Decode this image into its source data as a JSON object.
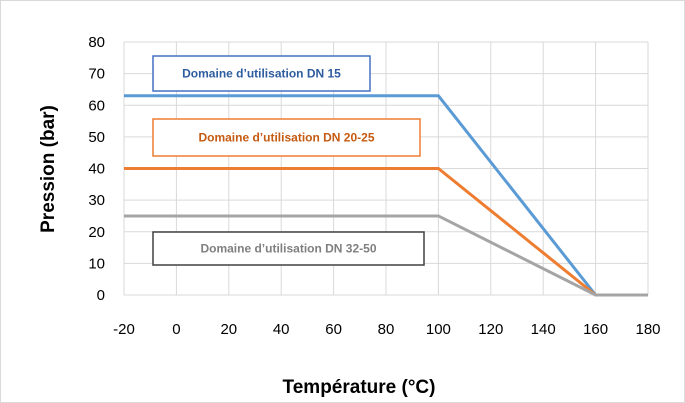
{
  "chart_data": {
    "type": "line",
    "title": "",
    "xlabel": "Température (°C)",
    "ylabel": "Pression (bar)",
    "xlim": [
      -20,
      180
    ],
    "ylim": [
      0,
      80
    ],
    "x_ticks": [
      -20,
      0,
      20,
      40,
      60,
      80,
      100,
      120,
      140,
      160,
      180
    ],
    "y_ticks": [
      0,
      10,
      20,
      30,
      40,
      50,
      60,
      70,
      80
    ],
    "grid": true,
    "series": [
      {
        "color": "#5b9bd5",
        "points": [
          [
            -20,
            63
          ],
          [
            100,
            63
          ],
          [
            160,
            0
          ],
          [
            180,
            0
          ]
        ]
      },
      {
        "color": "#ed7d31",
        "points": [
          [
            -20,
            40
          ],
          [
            100,
            40
          ],
          [
            160,
            0
          ],
          [
            180,
            0
          ]
        ]
      },
      {
        "color": "#a5a5a5",
        "points": [
          [
            -20,
            25
          ],
          [
            100,
            25
          ],
          [
            160,
            0
          ],
          [
            180,
            0
          ]
        ]
      }
    ],
    "annotations": [
      {
        "text": "Domaine d’utilisation DN 15",
        "color": "#2e5d9f",
        "border": "#4472c4"
      },
      {
        "text": "Domaine d’utilisation DN 20-25",
        "color": "#c55a11",
        "border": "#ed7d31"
      },
      {
        "text": "Domaine d’utilisation DN 32-50",
        "color": "#7f7f7f",
        "border": "#404040"
      }
    ]
  }
}
